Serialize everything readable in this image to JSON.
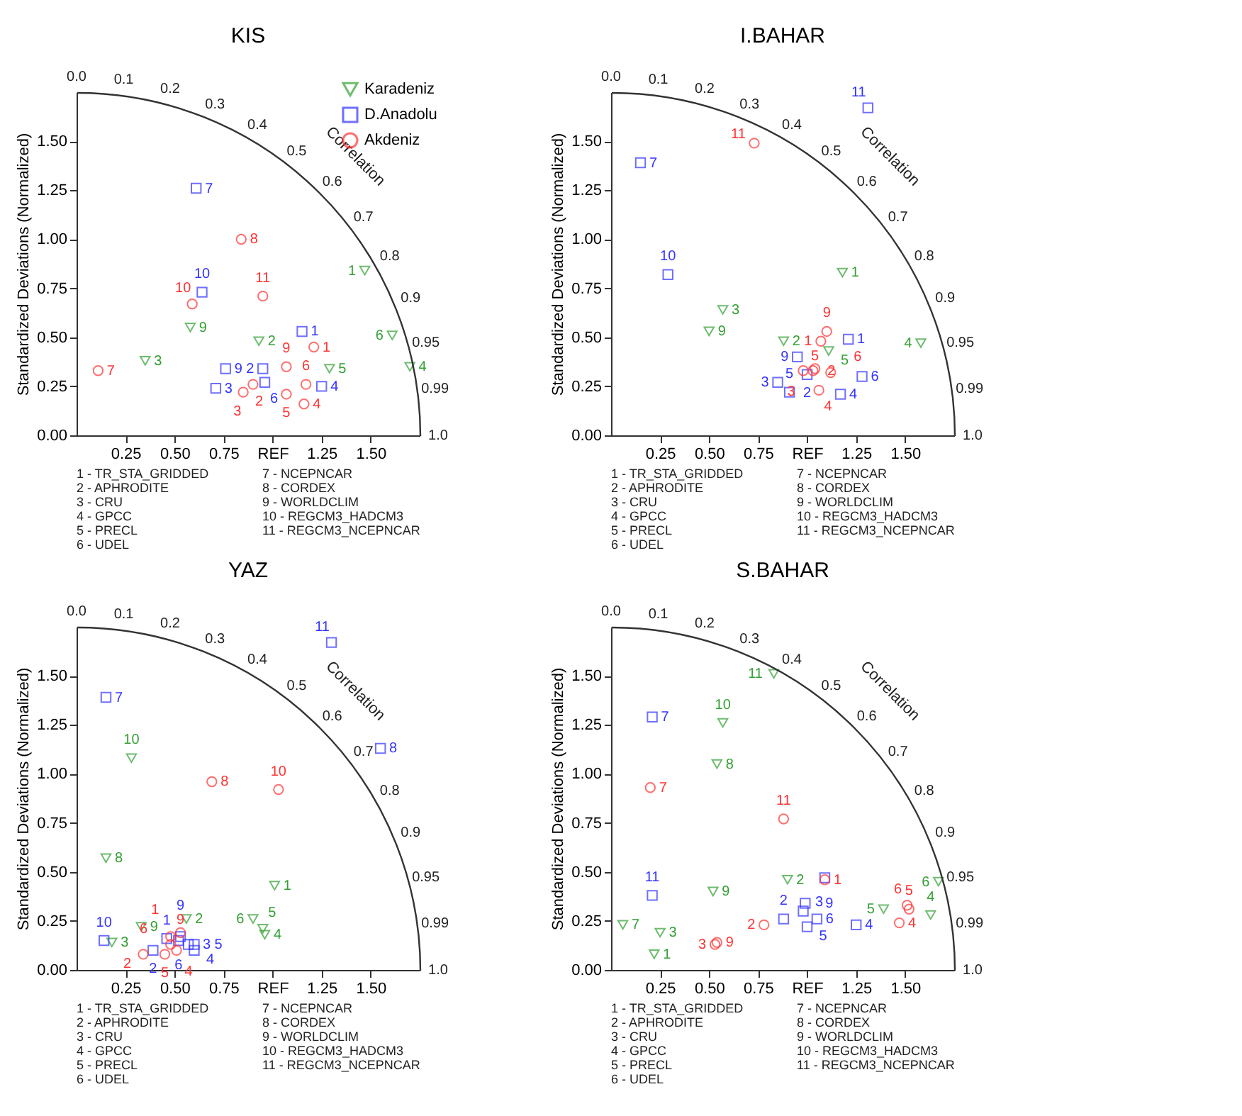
{
  "chart_data": [
    {
      "type": "scatter",
      "title": "KIS",
      "ylabel": "Standardized Deviations (Normalized)",
      "xlim": [
        0,
        1.75
      ],
      "ylim": [
        0,
        1.75
      ],
      "xticks": [
        0.25,
        {
          "value": 0.5,
          "label": "0.50"
        },
        0.75,
        {
          "value": 1,
          "label": "REF"
        },
        1.25,
        {
          "value": 1.5,
          "label": "1.50"
        }
      ],
      "yticks": [
        {
          "value": 0,
          "label": "0.00"
        },
        0.25,
        {
          "value": 0.5,
          "label": "0.50"
        },
        0.75,
        {
          "value": 1,
          "label": "1.00"
        },
        1.25,
        {
          "value": 1.5,
          "label": "1.50"
        }
      ],
      "legend": "top right",
      "series": [
        {
          "name": "Karadeniz",
          "color": "#33a033",
          "marker": "triangle",
          "x": [
            1.47,
            0.93,
            0.35,
            1.7,
            1.29,
            1.61,
            0.58
          ],
          "values": [
            0.84,
            0.48,
            0.38,
            0.35,
            0.34,
            0.51,
            0.55
          ]
        },
        {
          "name": "D.Anadolu",
          "color": "#3333ff",
          "marker": "square",
          "x": [
            1.15,
            0.95,
            0.71,
            1.25,
            0.96,
            0.61,
            0.76,
            0.64
          ],
          "values": [
            0.53,
            0.34,
            0.24,
            0.25,
            0.27,
            1.26,
            0.34,
            0.73
          ]
        },
        {
          "name": "Akdeniz",
          "color": "#ff3333",
          "marker": "circle",
          "x": [
            1.21,
            0.85,
            0.9,
            1.16,
            1.07,
            1.17,
            0.11,
            0.84,
            1.07,
            0.59,
            0.95
          ],
          "values": [
            0.45,
            0.22,
            0.26,
            0.16,
            0.21,
            0.26,
            0.33,
            1.0,
            0.35,
            0.67,
            0.71
          ]
        }
      ],
      "annotations": [
        "1 - TR_STA_GRIDDED",
        "2 - APHRODITE",
        "3 - CRU",
        "4 - GPCC",
        "5 - PRECL",
        "6 - UDEL",
        "7 - NCEPNCAR",
        "8 - CORDEX",
        "9 - WORLDCLIM",
        "10 - REGCM3_HADCM3",
        "11 - REGCM3_NCEPNCAR",
        "Correlation",
        "0.0",
        "0.1",
        "0.2",
        "0.3",
        "0.4",
        "0.5",
        "0.6",
        "0.7",
        "0.8",
        "0.9",
        "0.95",
        "0.99",
        "1.0",
        {
          "text": "1",
          "x": 1.47,
          "y": 0.84
        },
        {
          "text": "2",
          "x": 0.93,
          "y": 0.48
        },
        {
          "text": "3",
          "x": 0.35,
          "y": 0.38
        },
        {
          "text": "4",
          "x": 1.7,
          "y": 0.35
        },
        {
          "text": "5",
          "x": 1.29,
          "y": 0.34
        },
        {
          "text": "6",
          "x": 1.61,
          "y": 0.51
        },
        {
          "text": "9",
          "x": 0.58,
          "y": 0.55
        },
        {
          "text": "1",
          "x": 1.15,
          "y": 0.53
        },
        {
          "text": "2",
          "x": 0.95,
          "y": 0.34
        },
        {
          "text": "3",
          "x": 0.71,
          "y": 0.24
        },
        {
          "text": "4",
          "x": 1.25,
          "y": 0.25
        },
        {
          "text": "6",
          "x": 0.96,
          "y": 0.27
        },
        {
          "text": "7",
          "x": 0.61,
          "y": 1.26
        },
        {
          "text": "9",
          "x": 0.76,
          "y": 0.34
        },
        {
          "text": "10",
          "x": 0.64,
          "y": 0.73
        },
        {
          "text": "1",
          "x": 1.21,
          "y": 0.45
        },
        {
          "text": "2",
          "x": 0.85,
          "y": 0.22
        },
        {
          "text": "3",
          "x": 0.9,
          "y": 0.26
        },
        {
          "text": "4",
          "x": 1.16,
          "y": 0.16
        },
        {
          "text": "5",
          "x": 1.07,
          "y": 0.21
        },
        {
          "text": "6",
          "x": 1.17,
          "y": 0.26
        },
        {
          "text": "7",
          "x": 0.11,
          "y": 0.33
        },
        {
          "text": "8",
          "x": 0.84,
          "y": 1.0
        },
        {
          "text": "9",
          "x": 1.07,
          "y": 0.35
        },
        {
          "text": "10",
          "x": 0.59,
          "y": 0.67
        },
        {
          "text": "11",
          "x": 0.95,
          "y": 0.71
        }
      ]
    },
    {
      "type": "scatter",
      "title": "I.BAHAR",
      "ylabel": "Standardized Deviations (Normalized)",
      "xlim": [
        0,
        1.75
      ],
      "ylim": [
        0,
        1.75
      ],
      "xticks": [
        0.25,
        {
          "value": 0.5,
          "label": "0.50"
        },
        0.75,
        {
          "value": 1,
          "label": "REF"
        },
        1.25,
        {
          "value": 1.5,
          "label": "1.50"
        }
      ],
      "yticks": [
        {
          "value": 0,
          "label": "0.00"
        },
        0.25,
        {
          "value": 0.5,
          "label": "0.50"
        },
        0.75,
        {
          "value": 1,
          "label": "1.00"
        },
        1.25,
        {
          "value": 1.5,
          "label": "1.50"
        }
      ],
      "legend": "top right",
      "series": [
        {
          "name": "Karadeniz",
          "color": "#33a033",
          "marker": "triangle",
          "x": [
            1.18,
            0.88,
            0.57,
            1.58,
            1.11,
            0.5
          ],
          "values": [
            0.83,
            0.48,
            0.64,
            0.47,
            0.43,
            0.53
          ]
        },
        {
          "name": "D.Anadolu",
          "color": "#3333ff",
          "marker": "square",
          "x": [
            1.21,
            1.0,
            0.85,
            1.17,
            0.91,
            1.28,
            0.15,
            0.95,
            0.29,
            1.31
          ],
          "values": [
            0.49,
            0.31,
            0.27,
            0.21,
            0.22,
            0.3,
            1.39,
            0.4,
            0.82,
            1.67
          ]
        },
        {
          "name": "Akdeniz",
          "color": "#ff3333",
          "marker": "circle",
          "x": [
            1.07,
            1.03,
            0.98,
            1.06,
            1.04,
            1.12,
            1.1,
            0.73
          ],
          "values": [
            0.48,
            0.33,
            0.33,
            0.23,
            0.34,
            0.32,
            0.53,
            1.49
          ]
        }
      ],
      "annotations": [
        "1 - TR_STA_GRIDDED",
        "2 - APHRODITE",
        "3 - CRU",
        "4 - GPCC",
        "5 - PRECL",
        "6 - UDEL",
        "7 - NCEPNCAR",
        "8 - CORDEX",
        "9 - WORLDCLIM",
        "10 - REGCM3_HADCM3",
        "11 - REGCM3_NCEPNCAR",
        "Correlation",
        "0.0",
        "0.1",
        "0.2",
        "0.3",
        "0.4",
        "0.5",
        "0.6",
        "0.7",
        "0.8",
        "0.9",
        "0.95",
        "0.99",
        "1.0",
        {
          "text": "1",
          "x": 1.18,
          "y": 0.83
        },
        {
          "text": "2",
          "x": 0.88,
          "y": 0.48
        },
        {
          "text": "3",
          "x": 0.57,
          "y": 0.64
        },
        {
          "text": "4",
          "x": 1.58,
          "y": 0.47
        },
        {
          "text": "5",
          "x": 1.11,
          "y": 0.43
        },
        {
          "text": "9",
          "x": 0.5,
          "y": 0.53
        },
        {
          "text": "1",
          "x": 1.21,
          "y": 0.49
        },
        {
          "text": "2",
          "x": 1.0,
          "y": 0.31
        },
        {
          "text": "3",
          "x": 0.85,
          "y": 0.27
        },
        {
          "text": "4",
          "x": 1.17,
          "y": 0.21
        },
        {
          "text": "5",
          "x": 0.91,
          "y": 0.22
        },
        {
          "text": "6",
          "x": 1.28,
          "y": 0.3
        },
        {
          "text": "7",
          "x": 0.15,
          "y": 1.39
        },
        {
          "text": "9",
          "x": 0.95,
          "y": 0.4
        },
        {
          "text": "10",
          "x": 0.29,
          "y": 0.82
        },
        {
          "text": "11",
          "x": 1.31,
          "y": 1.67
        },
        {
          "text": "1",
          "x": 1.07,
          "y": 0.48
        },
        {
          "text": "2",
          "x": 1.03,
          "y": 0.33
        },
        {
          "text": "3",
          "x": 0.98,
          "y": 0.33
        },
        {
          "text": "4",
          "x": 1.06,
          "y": 0.23
        },
        {
          "text": "5",
          "x": 1.04,
          "y": 0.34
        },
        {
          "text": "6",
          "x": 1.12,
          "y": 0.32
        },
        {
          "text": "9",
          "x": 1.1,
          "y": 0.53
        },
        {
          "text": "11",
          "x": 0.73,
          "y": 1.49
        }
      ]
    },
    {
      "type": "scatter",
      "title": "YAZ",
      "ylabel": "Standardized Deviations (Normalized)",
      "xlim": [
        0,
        1.75
      ],
      "ylim": [
        0,
        1.75
      ],
      "xticks": [
        0.25,
        {
          "value": 0.5,
          "label": "0.50"
        },
        0.75,
        {
          "value": 1,
          "label": "REF"
        },
        1.25,
        {
          "value": 1.5,
          "label": "1.50"
        }
      ],
      "yticks": [
        {
          "value": 0,
          "label": "0.00"
        },
        0.25,
        {
          "value": 0.5,
          "label": "0.50"
        },
        0.75,
        {
          "value": 1,
          "label": "1.00"
        },
        1.25,
        {
          "value": 1.5,
          "label": "1.50"
        }
      ],
      "legend": "top right",
      "series": [
        {
          "name": "Karadeniz",
          "color": "#33a033",
          "marker": "triangle",
          "x": [
            1.01,
            0.56,
            0.18,
            0.96,
            0.95,
            0.9,
            0.15,
            0.33,
            0.28
          ],
          "values": [
            0.43,
            0.26,
            0.14,
            0.18,
            0.21,
            0.26,
            0.57,
            0.22,
            1.08
          ]
        },
        {
          "name": "D.Anadolu",
          "color": "#3333ff",
          "marker": "square",
          "x": [
            0.46,
            0.39,
            0.57,
            0.6,
            0.6,
            0.52,
            0.15,
            1.55,
            0.53,
            0.14,
            1.3
          ],
          "values": [
            0.16,
            0.1,
            0.13,
            0.1,
            0.13,
            0.15,
            1.39,
            1.13,
            0.17,
            0.15,
            1.67
          ]
        },
        {
          "name": "Akdeniz",
          "color": "#ff3333",
          "marker": "circle",
          "x": [
            0.48,
            0.34,
            0.51,
            0.45,
            0.48,
            0.69,
            0.53,
            1.03
          ],
          "values": [
            0.17,
            0.08,
            0.1,
            0.08,
            0.13,
            0.96,
            0.19,
            0.92
          ]
        }
      ],
      "annotations": [
        "1 - TR_STA_GRIDDED",
        "2 - APHRODITE",
        "3 - CRU",
        "4 - GPCC",
        "5 - PRECL",
        "6 - UDEL",
        "7 - NCEPNCAR",
        "8 - CORDEX",
        "9 - WORLDCLIM",
        "10 - REGCM3_HADCM3",
        "11 - REGCM3_NCEPNCAR",
        "Correlation",
        "0.0",
        "0.1",
        "0.2",
        "0.3",
        "0.4",
        "0.5",
        "0.6",
        "0.7",
        "0.8",
        "0.9",
        "0.95",
        "0.99",
        "1.0",
        {
          "text": "1",
          "x": 1.01,
          "y": 0.43
        },
        {
          "text": "2",
          "x": 0.56,
          "y": 0.26
        },
        {
          "text": "3",
          "x": 0.18,
          "y": 0.14
        },
        {
          "text": "4",
          "x": 0.96,
          "y": 0.18
        },
        {
          "text": "5",
          "x": 0.95,
          "y": 0.21
        },
        {
          "text": "6",
          "x": 0.9,
          "y": 0.26
        },
        {
          "text": "8",
          "x": 0.15,
          "y": 0.57
        },
        {
          "text": "9",
          "x": 0.33,
          "y": 0.22
        },
        {
          "text": "10",
          "x": 0.28,
          "y": 1.08
        },
        {
          "text": "1",
          "x": 0.46,
          "y": 0.16
        },
        {
          "text": "2",
          "x": 0.39,
          "y": 0.1
        },
        {
          "text": "3",
          "x": 0.57,
          "y": 0.13
        },
        {
          "text": "4",
          "x": 0.6,
          "y": 0.1
        },
        {
          "text": "5",
          "x": 0.6,
          "y": 0.13
        },
        {
          "text": "6",
          "x": 0.52,
          "y": 0.15
        },
        {
          "text": "7",
          "x": 0.15,
          "y": 1.39
        },
        {
          "text": "8",
          "x": 1.55,
          "y": 1.13
        },
        {
          "text": "9",
          "x": 0.53,
          "y": 0.17
        },
        {
          "text": "10",
          "x": 0.14,
          "y": 0.15
        },
        {
          "text": "11",
          "x": 1.3,
          "y": 1.67
        },
        {
          "text": "1",
          "x": 0.48,
          "y": 0.17
        },
        {
          "text": "2",
          "x": 0.34,
          "y": 0.08
        },
        {
          "text": "4",
          "x": 0.51,
          "y": 0.1
        },
        {
          "text": "5",
          "x": 0.45,
          "y": 0.08
        },
        {
          "text": "6",
          "x": 0.48,
          "y": 0.13
        },
        {
          "text": "8",
          "x": 0.69,
          "y": 0.96
        },
        {
          "text": "9",
          "x": 0.53,
          "y": 0.19
        },
        {
          "text": "10",
          "x": 1.03,
          "y": 0.92
        }
      ]
    },
    {
      "type": "scatter",
      "title": "S.BAHAR",
      "ylabel": "Standardized Deviations (Normalized)",
      "xlim": [
        0,
        1.75
      ],
      "ylim": [
        0,
        1.75
      ],
      "xticks": [
        0.25,
        {
          "value": 0.5,
          "label": "0.50"
        },
        0.75,
        {
          "value": 1,
          "label": "REF"
        },
        1.25,
        {
          "value": 1.5,
          "label": "1.50"
        }
      ],
      "yticks": [
        {
          "value": 0,
          "label": "0.00"
        },
        0.25,
        {
          "value": 0.5,
          "label": "0.50"
        },
        0.75,
        {
          "value": 1,
          "label": "1.00"
        },
        1.25,
        {
          "value": 1.5,
          "label": "1.50"
        }
      ],
      "legend": "top right",
      "series": [
        {
          "name": "Karadeniz",
          "color": "#33a033",
          "marker": "triangle",
          "x": [
            0.22,
            0.9,
            0.25,
            1.63,
            1.39,
            1.67,
            0.06,
            0.54,
            0.52,
            0.57,
            0.83
          ],
          "values": [
            0.08,
            0.46,
            0.19,
            0.28,
            0.31,
            0.45,
            0.23,
            1.05,
            0.4,
            1.26,
            1.51
          ]
        },
        {
          "name": "D.Anadolu",
          "color": "#3333ff",
          "marker": "square",
          "x": [
            1.09,
            0.88,
            0.98,
            1.25,
            1.0,
            1.05,
            0.21,
            0.99,
            0.21
          ],
          "values": [
            0.47,
            0.26,
            0.3,
            0.23,
            0.22,
            0.26,
            1.29,
            0.34,
            0.38
          ]
        },
        {
          "name": "Akdeniz",
          "color": "#ff3333",
          "marker": "circle",
          "x": [
            1.09,
            0.78,
            0.53,
            1.47,
            1.52,
            1.51,
            0.2,
            0.54,
            0.88
          ],
          "values": [
            0.46,
            0.23,
            0.13,
            0.24,
            0.31,
            0.33,
            0.93,
            0.14,
            0.77
          ]
        }
      ],
      "annotations": [
        "1 - TR_STA_GRIDDED",
        "2 - APHRODITE",
        "3 - CRU",
        "4 - GPCC",
        "5 - PRECL",
        "6 - UDEL",
        "7 - NCEPNCAR",
        "8 - CORDEX",
        "9 - WORLDCLIM",
        "10 - REGCM3_HADCM3",
        "11 - REGCM3_NCEPNCAR",
        "Correlation",
        "0.0",
        "0.1",
        "0.2",
        "0.3",
        "0.4",
        "0.5",
        "0.6",
        "0.7",
        "0.8",
        "0.9",
        "0.95",
        "0.99",
        "1.0",
        {
          "text": "1",
          "x": 0.22,
          "y": 0.08
        },
        {
          "text": "2",
          "x": 0.9,
          "y": 0.46
        },
        {
          "text": "3",
          "x": 0.25,
          "y": 0.19
        },
        {
          "text": "4",
          "x": 1.63,
          "y": 0.28
        },
        {
          "text": "5",
          "x": 1.39,
          "y": 0.31
        },
        {
          "text": "6",
          "x": 1.67,
          "y": 0.45
        },
        {
          "text": "7",
          "x": 0.06,
          "y": 0.23
        },
        {
          "text": "8",
          "x": 0.54,
          "y": 1.05
        },
        {
          "text": "9",
          "x": 0.52,
          "y": 0.4
        },
        {
          "text": "10",
          "x": 0.57,
          "y": 1.26
        },
        {
          "text": "11",
          "x": 0.83,
          "y": 1.51
        },
        {
          "text": "2",
          "x": 0.88,
          "y": 0.26
        },
        {
          "text": "3",
          "x": 0.98,
          "y": 0.3
        },
        {
          "text": "4",
          "x": 1.25,
          "y": 0.23
        },
        {
          "text": "5",
          "x": 1.0,
          "y": 0.22
        },
        {
          "text": "6",
          "x": 1.05,
          "y": 0.26
        },
        {
          "text": "7",
          "x": 0.21,
          "y": 1.29
        },
        {
          "text": "9",
          "x": 0.99,
          "y": 0.34
        },
        {
          "text": "11",
          "x": 0.21,
          "y": 0.38
        },
        {
          "text": "1",
          "x": 1.09,
          "y": 0.46
        },
        {
          "text": "2",
          "x": 0.78,
          "y": 0.23
        },
        {
          "text": "3",
          "x": 0.53,
          "y": 0.13
        },
        {
          "text": "4",
          "x": 1.47,
          "y": 0.24
        },
        {
          "text": "5",
          "x": 1.52,
          "y": 0.31
        },
        {
          "text": "6",
          "x": 1.51,
          "y": 0.33
        },
        {
          "text": "7",
          "x": 0.2,
          "y": 0.93
        },
        {
          "text": "9",
          "x": 0.54,
          "y": 0.14
        },
        {
          "text": "11",
          "x": 0.88,
          "y": 0.77
        }
      ]
    }
  ]
}
